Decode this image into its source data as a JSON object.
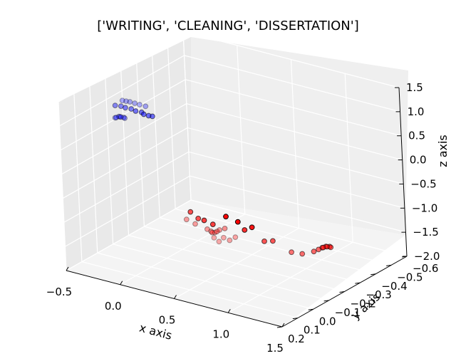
{
  "chart_data": {
    "type": "scatter",
    "title": "['WRITING', 'CLEANING', 'DISSERTATION']",
    "xlabel": "x axis",
    "ylabel": "y axis",
    "zlabel": "z axis",
    "x_ticks": [
      "−0.5",
      "0.0",
      "0.5",
      "1.0",
      "1.5"
    ],
    "y_ticks": [
      "−0.6",
      "−0.5",
      "−0.4",
      "−0.3",
      "−0.2",
      "−0.1",
      "0.0",
      "0.1",
      "0.2"
    ],
    "z_ticks": [
      "1.5",
      "1.0",
      "0.5",
      "0.0",
      "−0.5",
      "−1.0",
      "−1.5",
      "−2.0"
    ],
    "xlim": [
      -0.5,
      1.5
    ],
    "ylim": [
      -0.6,
      0.2
    ],
    "zlim": [
      -2.0,
      1.5
    ],
    "grid": true,
    "series": [
      {
        "color": "#0000ff",
        "points": [
          [
            -0.32,
            -0.08,
            1.12
          ],
          [
            -0.3,
            -0.09,
            1.1
          ],
          [
            -0.28,
            -0.1,
            1.08
          ],
          [
            -0.25,
            -0.11,
            1.05
          ],
          [
            -0.22,
            -0.12,
            1.02
          ],
          [
            -0.18,
            -0.13,
            0.99
          ],
          [
            -0.35,
            -0.05,
            0.8
          ],
          [
            -0.34,
            -0.05,
            0.81
          ],
          [
            -0.33,
            -0.06,
            0.82
          ],
          [
            -0.32,
            -0.06,
            0.82
          ],
          [
            -0.31,
            -0.06,
            0.82
          ],
          [
            -0.3,
            -0.07,
            0.8
          ],
          [
            -0.29,
            -0.07,
            0.79
          ],
          [
            -0.3,
            -0.02,
            1.14
          ],
          [
            -0.26,
            -0.03,
            1.13
          ],
          [
            -0.22,
            -0.03,
            1.12
          ],
          [
            -0.18,
            -0.04,
            1.1
          ],
          [
            -0.14,
            -0.04,
            1.08
          ],
          [
            -0.1,
            -0.05,
            1.06
          ],
          [
            -0.08,
            -0.05,
            1.03
          ],
          [
            -0.05,
            -0.06,
            1.0
          ],
          [
            -0.03,
            -0.07,
            0.98
          ]
        ]
      },
      {
        "color": "#ff0000",
        "points": [
          [
            0.05,
            -0.2,
            -1.35
          ],
          [
            0.1,
            -0.22,
            -1.45
          ],
          [
            0.18,
            -0.24,
            -1.55
          ],
          [
            0.2,
            -0.25,
            -1.6
          ],
          [
            0.21,
            -0.25,
            -1.62
          ],
          [
            0.22,
            -0.26,
            -1.63
          ],
          [
            0.24,
            -0.26,
            -1.6
          ],
          [
            0.25,
            -0.27,
            -1.58
          ],
          [
            0.3,
            -0.27,
            -1.52
          ],
          [
            0.18,
            -0.28,
            -1.8
          ],
          [
            0.21,
            -0.29,
            -1.88
          ],
          [
            0.24,
            -0.3,
            -1.8
          ],
          [
            0.28,
            -0.31,
            -1.85
          ],
          [
            0.32,
            -0.32,
            -1.78
          ],
          [
            0.24,
            -0.1,
            -0.9
          ],
          [
            0.28,
            -0.12,
            -1.05
          ],
          [
            0.35,
            -0.11,
            -1.03
          ],
          [
            0.4,
            -0.13,
            -1.12
          ],
          [
            0.6,
            -0.08,
            -0.75
          ],
          [
            0.68,
            -0.1,
            -0.85
          ],
          [
            0.62,
            -0.18,
            -1.2
          ],
          [
            0.72,
            -0.16,
            -1.05
          ],
          [
            0.65,
            -0.28,
            -1.6
          ],
          [
            0.7,
            -0.3,
            -1.6
          ],
          [
            0.75,
            -0.38,
            -1.95
          ],
          [
            0.82,
            -0.4,
            -1.98
          ],
          [
            0.9,
            -0.42,
            -1.92
          ],
          [
            0.93,
            -0.43,
            -1.88
          ],
          [
            0.95,
            -0.44,
            -1.85
          ],
          [
            0.96,
            -0.44,
            -1.84
          ],
          [
            0.97,
            -0.45,
            -1.83
          ],
          [
            0.98,
            -0.45,
            -1.83
          ],
          [
            0.99,
            -0.46,
            -1.84
          ],
          [
            1.0,
            -0.46,
            -1.85
          ]
        ]
      }
    ]
  }
}
